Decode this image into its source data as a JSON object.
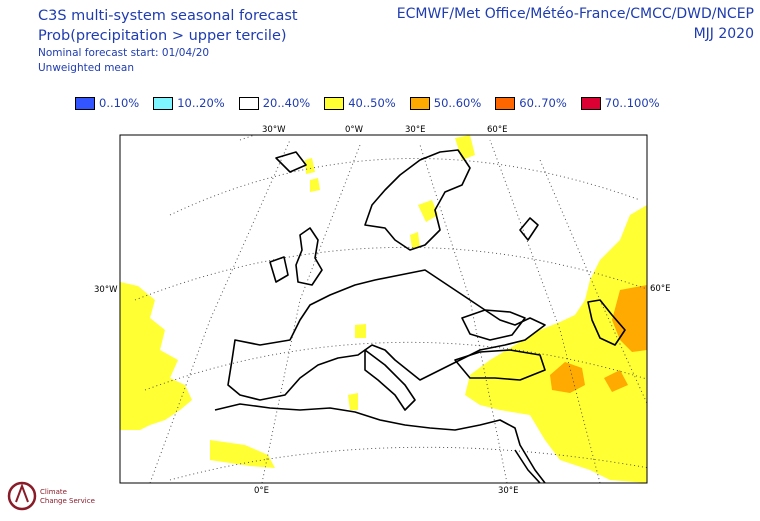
{
  "header": {
    "title": "C3S multi-system seasonal forecast",
    "subtitle": "Prob(precipitation > upper tercile)",
    "nominal_start": "Nominal forecast start: 01/04/20",
    "mean_type": "Unweighted mean",
    "centres": "ECMWF/Met Office/Météo-France/CMCC/DWD/NCEP",
    "period": "MJJ 2020"
  },
  "legend": [
    {
      "label": "0..10%",
      "color": "#3355ff"
    },
    {
      "label": "10..20%",
      "color": "#7ff5ff"
    },
    {
      "label": "20..40%",
      "color": "#ffffff"
    },
    {
      "label": "40..50%",
      "color": "#ffff33"
    },
    {
      "label": "50..60%",
      "color": "#ffaa00"
    },
    {
      "label": "60..70%",
      "color": "#ff6600"
    },
    {
      "label": "70..100%",
      "color": "#dd0033"
    }
  ],
  "axes": {
    "top": [
      "30°W",
      "0°W",
      "30°E",
      "60°E"
    ],
    "left": "30°W",
    "right": "60°E",
    "bottom": [
      "0°E",
      "30°E"
    ]
  },
  "logo_text": "Climate Change Service"
}
